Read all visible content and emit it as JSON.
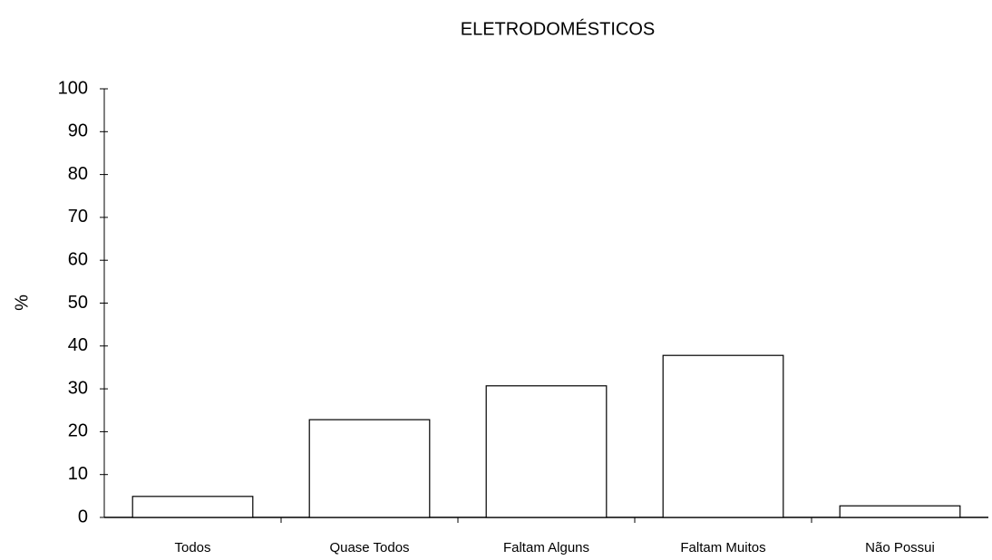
{
  "chart_data": {
    "type": "bar",
    "title": "ELETRODOMÉSTICOS",
    "ylabel": "%",
    "categories": [
      "Todos",
      "Quase Todos",
      "Faltam Alguns",
      "Faltam Muitos",
      "Não Possui"
    ],
    "values": [
      4.9,
      22.8,
      30.7,
      37.8,
      2.7
    ],
    "color": "#ffffff",
    "ylim": [
      0,
      100
    ],
    "yticks": [
      0,
      10,
      20,
      30,
      40,
      50,
      60,
      70,
      80,
      90,
      100
    ],
    "grid": false
  }
}
